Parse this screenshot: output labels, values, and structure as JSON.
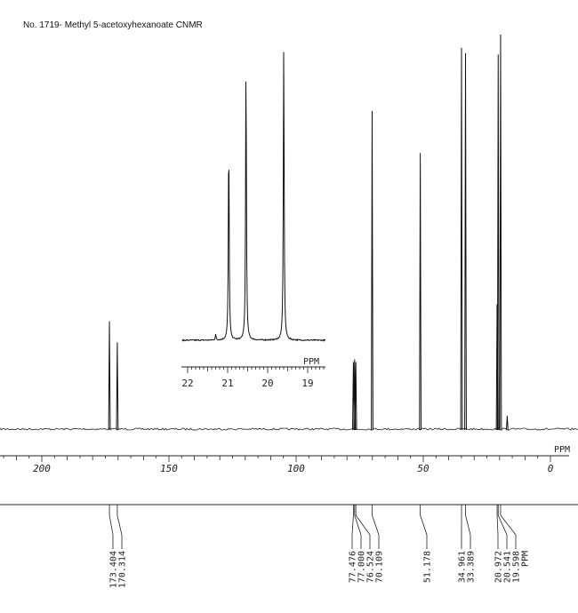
{
  "title": "No. 1719- Methyl 5-acetoxyhexanoate CNMR",
  "chart_data": {
    "type": "line",
    "title": "No. 1719- Methyl 5-acetoxyhexanoate CNMR",
    "xlabel": "PPM",
    "xlim": [
      0,
      200
    ],
    "x_reversed": true,
    "x_ticks": [
      "200",
      "150",
      "100",
      "50",
      "0"
    ],
    "x_tick_values": [
      200,
      150,
      100,
      50,
      0
    ],
    "grid": false,
    "peaks": [
      {
        "ppm": 173.404,
        "height": 0.82
      },
      {
        "ppm": 170.314,
        "height": 0.66
      },
      {
        "ppm": 77.476,
        "height": 0.51
      },
      {
        "ppm": 77.0,
        "height": 0.53
      },
      {
        "ppm": 76.524,
        "height": 0.51
      },
      {
        "ppm": 70.109,
        "height": 2.42
      },
      {
        "ppm": 51.178,
        "height": 2.1
      },
      {
        "ppm": 34.961,
        "height": 2.9
      },
      {
        "ppm": 33.389,
        "height": 2.86
      },
      {
        "ppm": 20.972,
        "height": 0.95
      },
      {
        "ppm": 20.541,
        "height": 2.85
      },
      {
        "ppm": 19.598,
        "height": 3.0
      },
      {
        "ppm": 17.0,
        "height": 0.1
      }
    ],
    "peak_labels": [
      "173.404",
      "170.314",
      "77.476",
      "77.000",
      "76.524",
      "70.109",
      "51.178",
      "34.961",
      "33.389",
      "20.972",
      "20.541",
      "19.598"
    ],
    "peak_label_ppm": [
      173.404,
      170.314,
      77.476,
      77.0,
      76.524,
      70.109,
      51.178,
      34.961,
      33.389,
      20.972,
      20.541,
      19.598
    ],
    "peak_labels_unit": "PPM",
    "inset": {
      "xlabel": "PPM",
      "xlim": [
        18.5,
        22.0
      ],
      "x_reversed": true,
      "x_ticks": [
        "22",
        "21",
        "20",
        "19"
      ],
      "x_tick_values": [
        22,
        21,
        20,
        19
      ],
      "peaks": [
        {
          "ppm": 20.972,
          "height": 0.73
        },
        {
          "ppm": 20.541,
          "height": 1.0
        },
        {
          "ppm": 19.598,
          "height": 1.06
        },
        {
          "ppm": 21.3,
          "height": 0.02
        }
      ]
    }
  }
}
